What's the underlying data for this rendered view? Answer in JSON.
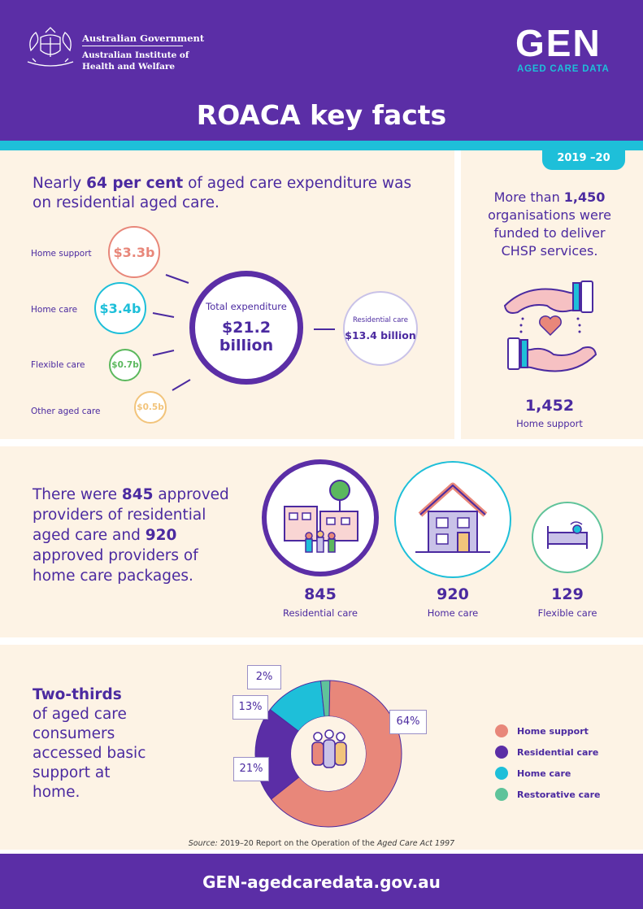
{
  "header": {
    "gov_line1": "Australian Government",
    "gov_line2": "Australian Institute of Health and Welfare",
    "logo_main": "GEN",
    "logo_sub": "AGED CARE DATA",
    "title": "ROACA key facts"
  },
  "year_badge": "2019 –20",
  "expenditure": {
    "heading_pre": "Nearly ",
    "heading_bold": "64 per cent",
    "heading_post": " of aged care expenditure was on residential aged care.",
    "items": [
      {
        "label": "Home support",
        "value": "$3.3b",
        "color": "#e8877a"
      },
      {
        "label": "Home care",
        "value": "$3.4b",
        "color": "#1ebfd9"
      },
      {
        "label": "Flexible care",
        "value": "$0.7b",
        "color": "#5bb85d"
      },
      {
        "label": "Other aged care",
        "value": "$0.5b",
        "color": "#f2c47b"
      }
    ],
    "total_label": "Total expenditure",
    "total_value": "$21.2 billion",
    "residential_label": "Residential care",
    "residential_value": "$13.4 billion"
  },
  "chsp": {
    "text_pre": "More than ",
    "text_bold": "1,450",
    "text_post": " organisations were funded to deliver CHSP services.",
    "number": "1,452",
    "label": "Home support"
  },
  "providers": {
    "t1": "There were ",
    "b1": "845",
    "t2": " approved providers of residential aged care and ",
    "b2": "920",
    "t3": " approved providers of home care packages.",
    "stats": [
      {
        "number": "845",
        "label": "Residential care"
      },
      {
        "number": "920",
        "label": "Home care"
      },
      {
        "number": "129",
        "label": "Flexible care"
      }
    ]
  },
  "consumers": {
    "bold": "Two-thirds",
    "text": "of aged care consumers accessed basic support at home.",
    "callouts": [
      "2%",
      "13%",
      "64%",
      "21%"
    ],
    "legend": [
      {
        "label": "Home support",
        "color": "#e8877a"
      },
      {
        "label": "Residential care",
        "color": "#5b2ea6"
      },
      {
        "label": "Home care",
        "color": "#1ebfd9"
      },
      {
        "label": "Restorative care",
        "color": "#5fc39a"
      }
    ]
  },
  "chart_data": {
    "type": "pie",
    "categories": [
      "Home support",
      "Residential care",
      "Home care",
      "Restorative care"
    ],
    "values": [
      64,
      21,
      13,
      2
    ],
    "colors": [
      "#e8877a",
      "#5b2ea6",
      "#1ebfd9",
      "#5fc39a"
    ],
    "unit": "%"
  },
  "source": {
    "label": "Source:",
    "text_pre": " 2019–20 Report on the Operation of the ",
    "text_italic": "Aged Care Act 1997"
  },
  "footer": {
    "url": "GEN-agedcaredata.gov.au"
  }
}
